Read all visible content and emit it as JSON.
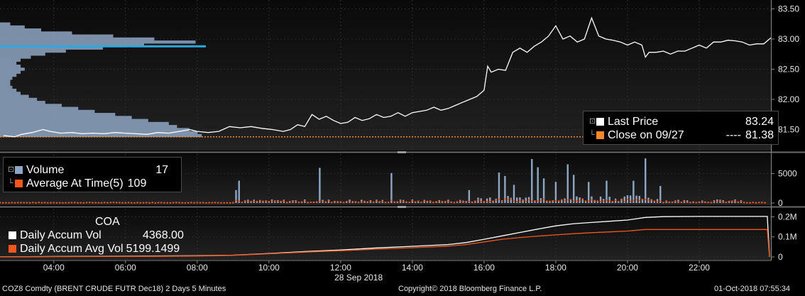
{
  "chart_data": [
    {
      "type": "line",
      "panel": "price",
      "ylim": [
        81.2,
        83.6
      ],
      "yticks": [
        "83.50",
        "83.00",
        "82.50",
        "82.00",
        "81.50"
      ],
      "ytick_values": [
        83.5,
        83.0,
        82.5,
        82.0,
        81.5
      ],
      "series": [
        {
          "name": "Last Price",
          "color": "#ffffff",
          "x": [
            2.6,
            2.9,
            3.1,
            3.4,
            3.7,
            3.9,
            4.2,
            4.5,
            4.8,
            5.1,
            5.4,
            5.7,
            6.0,
            6.3,
            6.6,
            6.9,
            7.2,
            7.5,
            7.8,
            8.0,
            8.3,
            8.6,
            8.9,
            9.2,
            9.5,
            9.8,
            10.1,
            10.4,
            10.6,
            10.8,
            11.0,
            11.2,
            11.4,
            11.6,
            11.8,
            12.0,
            12.2,
            12.4,
            12.6,
            12.8,
            13.0,
            13.2,
            13.4,
            13.6,
            13.8,
            14.0,
            14.2,
            14.4,
            14.6,
            14.8,
            15.0,
            15.2,
            15.4,
            15.6,
            15.8,
            16.0,
            16.1,
            16.2,
            16.4,
            16.6,
            16.8,
            17.0,
            17.2,
            17.4,
            17.6,
            17.8,
            18.0,
            18.2,
            18.4,
            18.6,
            18.8,
            19.0,
            19.2,
            19.4,
            19.6,
            19.8,
            20.0,
            20.2,
            20.4,
            20.5,
            20.6,
            20.8,
            21.0,
            21.2,
            21.4,
            21.6,
            21.8,
            22.0,
            22.2,
            22.4,
            22.6,
            22.8,
            23.0,
            23.2,
            23.4,
            23.6,
            23.8,
            24.0
          ],
          "values": [
            81.4,
            81.38,
            81.42,
            81.45,
            81.5,
            81.47,
            81.44,
            81.45,
            81.43,
            81.44,
            81.43,
            81.45,
            81.44,
            81.43,
            81.42,
            81.45,
            81.44,
            81.47,
            81.5,
            81.47,
            81.45,
            81.47,
            81.55,
            81.53,
            81.55,
            81.52,
            81.5,
            81.47,
            81.5,
            81.58,
            81.55,
            81.75,
            81.67,
            81.72,
            81.65,
            81.6,
            81.62,
            81.7,
            81.65,
            81.68,
            81.75,
            81.7,
            81.72,
            81.78,
            81.72,
            81.78,
            81.8,
            81.82,
            81.87,
            81.82,
            81.85,
            81.9,
            81.95,
            82.0,
            82.05,
            82.15,
            82.55,
            82.45,
            82.5,
            82.48,
            82.78,
            82.85,
            82.78,
            82.88,
            82.95,
            83.05,
            83.22,
            83.0,
            83.05,
            82.95,
            83.0,
            83.35,
            83.05,
            83.0,
            82.98,
            82.95,
            82.9,
            82.95,
            82.9,
            82.7,
            82.78,
            82.78,
            82.8,
            82.75,
            82.8,
            82.8,
            82.85,
            82.9,
            82.85,
            82.95,
            82.95,
            82.98,
            82.97,
            82.95,
            82.9,
            82.92,
            82.92,
            83.02
          ]
        }
      ],
      "reference_line": {
        "name": "Close on 09/27",
        "value": 81.38,
        "color": "#f2872b"
      },
      "legend": {
        "items": [
          {
            "label": "Last Price",
            "value": "83.24",
            "color": "#ffffff"
          },
          {
            "label": "Close on 09/27",
            "dashes": "----",
            "value": "81.38",
            "color": "#f2872b"
          }
        ],
        "placement": "bottom-right"
      },
      "volume_profile": {
        "color": "#8fa6c4",
        "highlight_color": "#29a9e0",
        "price_levels": [
          83.25,
          83.2,
          83.15,
          83.1,
          83.05,
          83.0,
          82.95,
          82.9,
          82.85,
          82.8,
          82.75,
          82.7,
          82.65,
          82.6,
          82.55,
          82.5,
          82.45,
          82.4,
          82.35,
          82.3,
          82.25,
          82.2,
          82.15,
          82.1,
          82.05,
          82.0,
          81.95,
          81.9,
          81.85,
          81.8,
          81.75,
          81.7,
          81.65,
          81.6,
          81.55,
          81.5,
          81.45,
          81.4
        ],
        "relative_volume": [
          0.05,
          0.12,
          0.2,
          0.35,
          0.55,
          0.75,
          0.95,
          0.7,
          0.5,
          0.32,
          0.22,
          0.15,
          0.1,
          0.08,
          0.1,
          0.12,
          0.1,
          0.08,
          0.06,
          0.05,
          0.05,
          0.06,
          0.08,
          0.1,
          0.14,
          0.18,
          0.22,
          0.3,
          0.38,
          0.46,
          0.56,
          0.64,
          0.72,
          0.82,
          0.86,
          0.92,
          0.96,
          0.98
        ],
        "highlight_level": 82.88
      }
    },
    {
      "type": "bar",
      "panel": "volume",
      "ylim": [
        0,
        7500
      ],
      "yticks": [
        "5000",
        "0"
      ],
      "ytick_values": [
        5000,
        0
      ],
      "series": [
        {
          "name": "Volume",
          "color": "#8fa6c4"
        },
        {
          "name": "Average At Time(5)",
          "color": "#f2561d"
        }
      ],
      "legend": {
        "items": [
          {
            "label": "Volume",
            "value": "17",
            "color": "#8fa6c4"
          },
          {
            "label": "Average At Time(5)",
            "value": "109",
            "color": "#f2561d"
          }
        ],
        "placement": "top-left"
      },
      "notable_bars": [
        {
          "x": 9.1,
          "value": 2200
        },
        {
          "x": 9.2,
          "value": 3800
        },
        {
          "x": 11.4,
          "value": 6000
        },
        {
          "x": 13.4,
          "value": 5100
        },
        {
          "x": 15.6,
          "value": 2200
        },
        {
          "x": 16.4,
          "value": 5200
        },
        {
          "x": 16.6,
          "value": 4600
        },
        {
          "x": 16.8,
          "value": 3100
        },
        {
          "x": 17.3,
          "value": 7500
        },
        {
          "x": 17.5,
          "value": 6100
        },
        {
          "x": 17.7,
          "value": 4200
        },
        {
          "x": 18.0,
          "value": 3600
        },
        {
          "x": 18.3,
          "value": 6600
        },
        {
          "x": 18.5,
          "value": 4800
        },
        {
          "x": 18.9,
          "value": 3600
        },
        {
          "x": 19.4,
          "value": 3800
        },
        {
          "x": 20.2,
          "value": 3800
        },
        {
          "x": 20.5,
          "value": 7600
        },
        {
          "x": 20.9,
          "value": 2900
        }
      ]
    },
    {
      "type": "line",
      "panel": "accumulated volume",
      "title": "COA",
      "ylim": [
        0,
        230000
      ],
      "yticks": [
        "0.2M",
        "0.1M",
        "0"
      ],
      "ytick_values": [
        200000,
        100000,
        0
      ],
      "series": [
        {
          "name": "Daily Accum Vol",
          "color": "#ffffff",
          "x": [
            2.0,
            4.0,
            6.0,
            8.0,
            9.0,
            10.0,
            11.0,
            12.0,
            13.0,
            14.0,
            15.0,
            15.5,
            16.0,
            16.5,
            17.0,
            17.5,
            18.0,
            18.5,
            19.0,
            19.5,
            20.0,
            20.5,
            21.0,
            22.0,
            23.0,
            23.9,
            24.0
          ],
          "values": [
            0,
            2000,
            4000,
            6000,
            9000,
            17000,
            27000,
            35000,
            45000,
            53000,
            62000,
            72000,
            88000,
            105000,
            122000,
            139000,
            155000,
            166000,
            172000,
            178000,
            184000,
            197000,
            201000,
            202000,
            202000,
            202000,
            0
          ]
        },
        {
          "name": "Daily Accum Avg Vol",
          "color": "#f2561d",
          "x": [
            2.0,
            4.0,
            6.0,
            8.0,
            9.0,
            10.0,
            11.0,
            12.0,
            13.0,
            14.0,
            15.0,
            15.5,
            16.0,
            16.5,
            17.0,
            17.5,
            18.0,
            18.5,
            19.0,
            19.5,
            20.0,
            20.5,
            21.0,
            22.0,
            23.0,
            23.9,
            24.0
          ],
          "values": [
            0,
            1500,
            3000,
            4500,
            8000,
            16000,
            24000,
            31000,
            39000,
            46000,
            54000,
            62000,
            75000,
            88000,
            97000,
            104000,
            110000,
            116000,
            121000,
            125000,
            129000,
            137000,
            137000,
            137000,
            137000,
            137000,
            0
          ]
        }
      ],
      "legend": {
        "items": [
          {
            "label": "Daily Accum Vol",
            "value": "4368.00",
            "color": "#ffffff"
          },
          {
            "label": "Daily Accum Avg Vol",
            "value": "5199.1499",
            "color": "#f2561d"
          }
        ],
        "placement": "top-left"
      }
    }
  ],
  "x_axis": {
    "range_hours": [
      2.5,
      24.0
    ],
    "ticks": [
      "04:00",
      "06:00",
      "08:00",
      "10:00",
      "12:00",
      "14:00",
      "16:00",
      "18:00",
      "20:00",
      "22:00"
    ],
    "tick_values": [
      4,
      6,
      8,
      10,
      12,
      14,
      16,
      18,
      20,
      22
    ],
    "date_label": "28 Sep 2018"
  },
  "footer": {
    "security": "COZ8 Comdty (BRENT CRUDE FUTR  Dec18) 2 Days 5 Minutes",
    "copyright": "Copyright© 2018 Bloomberg Finance L.P.",
    "timestamp": "01-Oct-2018 07:55:34"
  },
  "colors": {
    "background": "#000000",
    "panel": "#1c1c1c",
    "separator": "#6a6a6a",
    "grid": "#3a3a3a"
  }
}
